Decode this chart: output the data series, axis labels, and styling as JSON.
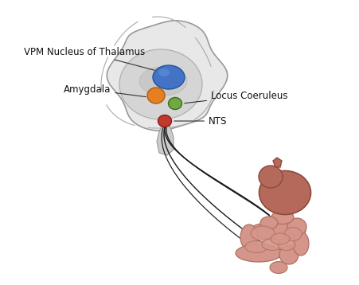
{
  "bg_color": "#ffffff",
  "brain_fill_color": "#e8e8e8",
  "thalamus_color": "#4472C4",
  "amygdala_color": "#E67F22",
  "locus_color": "#70A844",
  "nts_color": "#C0392B",
  "nerve_color": "#1a1a1a",
  "stomach_fill": "#b5695a",
  "intestine_fill": "#d4958a",
  "labels": {
    "vpm": "VPM Nucleus of Thalamus",
    "amygdala": "Amygdala",
    "locus": "Locus Coeruleus",
    "nts": "NTS"
  },
  "label_fontsize": 8.5,
  "label_color": "#111111"
}
